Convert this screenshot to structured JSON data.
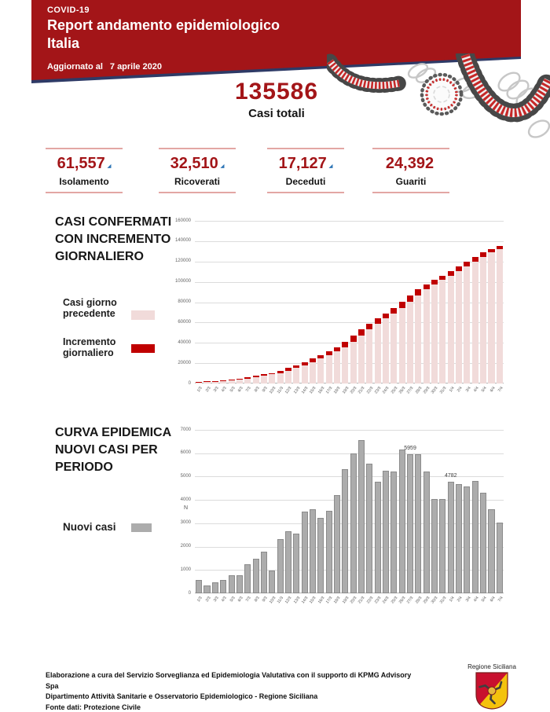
{
  "colors": {
    "header_bg": "#A31518",
    "header_edge": "#2E3A66",
    "accent_red": "#A31518",
    "increment_red": "#C00000",
    "previous_pink": "#F1DBDA",
    "new_cases_gray": "#ACACAC",
    "new_cases_border": "#8B8B8B",
    "stat_rule_pink": "#E3A6A4",
    "trend_arrow_blue": "#2E75B6"
  },
  "icons": {
    "illustration": "coronavirus-and-rna-ribbons-illustration",
    "trend_arrow": "small-blue-trend-arrow",
    "logo": "regione-siciliana-trinacria-shield"
  },
  "header": {
    "kicker": "COVID-19",
    "title_line1": "Report andamento epidemiologico",
    "title_line2": "Italia",
    "updated_label": "Aggiornato al",
    "updated_date": "7 aprile 2020"
  },
  "totals": {
    "value": "135586",
    "label": "Casi totali"
  },
  "stats": [
    {
      "value": "61,557",
      "label": "Isolamento",
      "trend_marker": "◢"
    },
    {
      "value": "32,510",
      "label": "Ricoverati",
      "trend_marker": "◢"
    },
    {
      "value": "17,127",
      "label": "Deceduti",
      "trend_marker": "◢"
    },
    {
      "value": "24,392",
      "label": "Guariti",
      "trend_marker": ""
    }
  ],
  "chart_data": [
    {
      "type": "bar",
      "stacked": true,
      "title": "CASI CONFERMATI CON INCREMENTO GIORNALIERO",
      "title_lines": [
        "CASI CONFERMATI",
        "CON INCREMENTO",
        "GIORNALIERO"
      ],
      "legend_position": "left",
      "grid": true,
      "ylim": [
        0,
        160000
      ],
      "ytick_step": 20000,
      "categories": [
        "1/3",
        "2/3",
        "3/3",
        "4/3",
        "5/3",
        "6/3",
        "7/3",
        "8/3",
        "9/3",
        "10/3",
        "11/3",
        "12/3",
        "13/3",
        "14/3",
        "15/3",
        "16/3",
        "17/3",
        "18/3",
        "19/3",
        "20/3",
        "21/3",
        "22/3",
        "23/3",
        "24/3",
        "25/3",
        "26/3",
        "27/3",
        "28/3",
        "29/3",
        "30/3",
        "31/3",
        "1/4",
        "2/4",
        "3/4",
        "4/4",
        "5/4",
        "6/4",
        "7/4"
      ],
      "series": [
        {
          "name": "Casi giorno precedente",
          "color": "#F1DBDA",
          "values": [
            1128,
            1694,
            2036,
            2502,
            3089,
            3858,
            4636,
            5883,
            7375,
            9172,
            10149,
            12462,
            15113,
            17660,
            21157,
            24747,
            27980,
            31506,
            35713,
            41035,
            47021,
            53578,
            59138,
            63927,
            69176,
            74386,
            80539,
            86498,
            92472,
            97689,
            101739,
            105792,
            110574,
            115242,
            119827,
            124632,
            128948,
            132547
          ]
        },
        {
          "name": "Incremento giornaliero",
          "color": "#C00000",
          "values": [
            566,
            342,
            466,
            587,
            769,
            778,
            1247,
            1492,
            1797,
            977,
            2313,
            2651,
            2547,
            3497,
            3590,
            3233,
            3526,
            4207,
            5322,
            5986,
            6557,
            5560,
            4789,
            5249,
            5210,
            6153,
            5959,
            5974,
            5217,
            4050,
            4053,
            4782,
            4668,
            4585,
            4805,
            4316,
            3599,
            3039
          ]
        }
      ]
    },
    {
      "type": "bar",
      "stacked": false,
      "title": "CURVA EPIDEMICA NUOVI CASI PER PERIODO",
      "title_lines": [
        "CURVA EPIDEMICA",
        "NUOVI CASI PER",
        "PERIODO"
      ],
      "legend_position": "left",
      "grid": true,
      "ylim": [
        0,
        7000
      ],
      "ytick_step": 1000,
      "ylabel": "N",
      "categories": [
        "1/3",
        "2/3",
        "3/3",
        "4/3",
        "5/3",
        "6/3",
        "7/3",
        "8/3",
        "9/3",
        "10/3",
        "11/3",
        "12/3",
        "13/3",
        "14/3",
        "15/3",
        "16/3",
        "17/3",
        "18/3",
        "19/3",
        "20/3",
        "21/3",
        "22/3",
        "23/3",
        "24/3",
        "25/3",
        "26/3",
        "27/3",
        "28/3",
        "29/3",
        "30/3",
        "31/3",
        "1/4",
        "2/4",
        "3/4",
        "4/4",
        "5/4",
        "6/4",
        "7/4"
      ],
      "series": [
        {
          "name": "Nuovi casi",
          "color": "#ACACAC",
          "border_color": "#8B8B8B",
          "values": [
            566,
            342,
            466,
            587,
            769,
            778,
            1247,
            1492,
            1797,
            977,
            2313,
            2651,
            2547,
            3497,
            3590,
            3233,
            3526,
            4207,
            5322,
            5986,
            6557,
            5560,
            4789,
            5249,
            5210,
            6153,
            5959,
            5974,
            5217,
            4050,
            4053,
            4782,
            4668,
            4585,
            4805,
            4316,
            3599,
            3039
          ]
        }
      ],
      "annotations": [
        {
          "index": 26,
          "category": "27/3",
          "text": "5959"
        },
        {
          "index": 31,
          "category": "1/4",
          "text": "4782"
        }
      ]
    }
  ],
  "footer": {
    "lines": [
      "Elaborazione a cura del Servizio Sorveglianza ed Epidemiologia Valutativa con il supporto di KPMG Advisory Spa",
      "Dipartimento Attività Sanitarie e Osservatorio Epidemiologico - Regione Siciliana",
      "Fonte dati: Protezione Civile"
    ],
    "region_label": "Regione Siciliana"
  }
}
